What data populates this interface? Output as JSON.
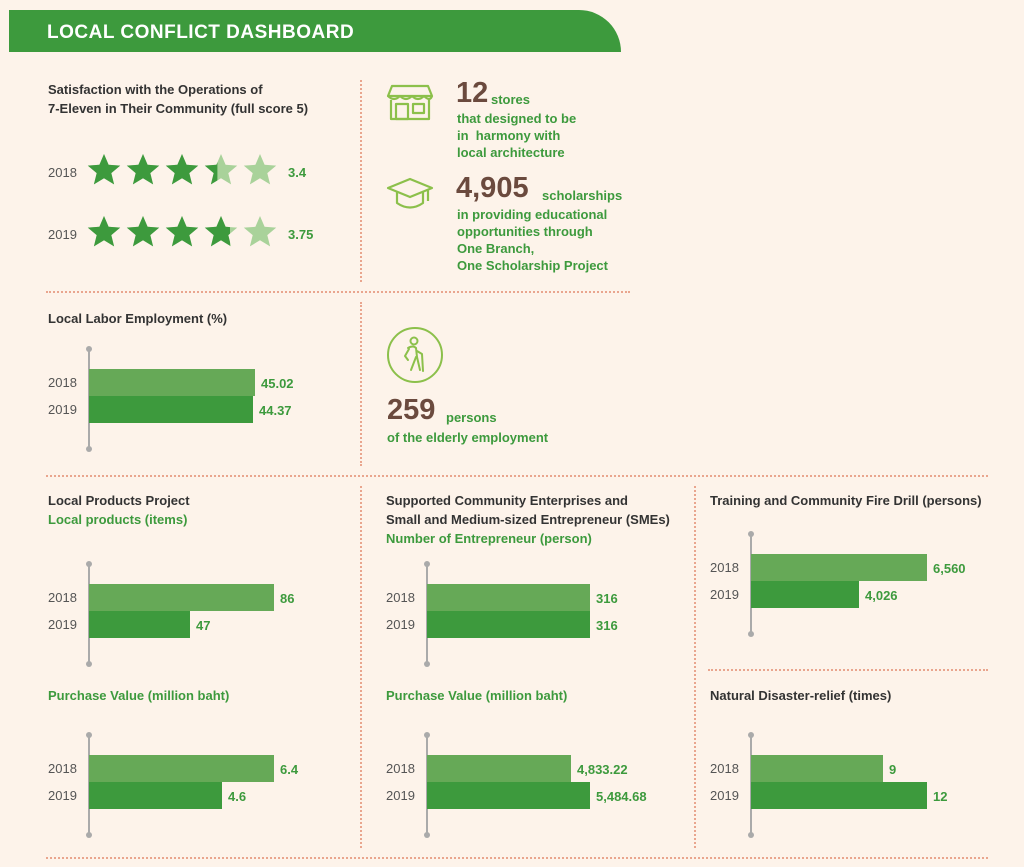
{
  "header": {
    "title": "LOCAL CONFLICT DASHBOARD"
  },
  "colors": {
    "accent": "#3d9a3d",
    "bar_2018": "#66a957",
    "bar_2019": "#3d9a3d",
    "number": "#6b4a3e",
    "divider": "#e9a58e"
  },
  "satisfaction": {
    "title_line1": "Satisfaction with the Operations of",
    "title_line2": "7-Eleven in Their Community (full score 5)",
    "rows": [
      {
        "year": "2018",
        "score": 3.4,
        "label": "3.4"
      },
      {
        "year": "2019",
        "score": 3.75,
        "label": "3.75"
      }
    ]
  },
  "stores": {
    "number": "12",
    "unit": "stores",
    "line1": "that designed to be",
    "line2": "in  harmony with",
    "line3": "local architecture",
    "icon": "store-icon"
  },
  "scholarships": {
    "number": "4,905",
    "unit": "scholarships",
    "line1": "in providing educational",
    "line2": "opportunities through",
    "line3": "One Branch,",
    "line4": "One Scholarship Project",
    "icon": "graduation-cap-icon"
  },
  "elderly": {
    "number": "259",
    "unit": "persons",
    "line1": "of the elderly employment",
    "icon": "elderly-person-icon"
  },
  "years": {
    "y2018": "2018",
    "y2019": "2019"
  },
  "chart_data": [
    {
      "id": "labor",
      "type": "bar",
      "title": "Local Labor Employment (%)",
      "categories": [
        "2018",
        "2019"
      ],
      "values": [
        45.02,
        44.37
      ],
      "labels": [
        "45.02",
        "44.37"
      ]
    },
    {
      "id": "local_products",
      "type": "bar",
      "title": "Local Products Project",
      "subtitle": "Local products (items)",
      "categories": [
        "2018",
        "2019"
      ],
      "values": [
        86,
        47
      ],
      "labels": [
        "86",
        "47"
      ]
    },
    {
      "id": "local_purchase",
      "type": "bar",
      "subtitle": "Purchase Value (million baht)",
      "categories": [
        "2018",
        "2019"
      ],
      "values": [
        6.4,
        4.6
      ],
      "labels": [
        "6.4",
        "4.6"
      ]
    },
    {
      "id": "sme_count",
      "type": "bar",
      "title": "Supported Community Enterprises and Small and Medium-sized Entrepreneur (SMEs)",
      "title_line1": "Supported Community Enterprises and",
      "title_line2": "Small and Medium-sized Entrepreneur (SMEs)",
      "subtitle": "Number of Entrepreneur (person)",
      "categories": [
        "2018",
        "2019"
      ],
      "values": [
        316,
        316
      ],
      "labels": [
        "316",
        "316"
      ]
    },
    {
      "id": "sme_purchase",
      "type": "bar",
      "subtitle": "Purchase Value (million baht)",
      "categories": [
        "2018",
        "2019"
      ],
      "values": [
        4833.22,
        5484.68
      ],
      "labels": [
        "4,833.22",
        "5,484.68"
      ]
    },
    {
      "id": "fire_drill",
      "type": "bar",
      "title": "Training and Community Fire Drill (persons)",
      "categories": [
        "2018",
        "2019"
      ],
      "values": [
        6560,
        4026
      ],
      "labels": [
        "6,560",
        "4,026"
      ]
    },
    {
      "id": "disaster",
      "type": "bar",
      "title": "Natural Disaster-relief (times)",
      "categories": [
        "2018",
        "2019"
      ],
      "values": [
        9,
        12
      ],
      "labels": [
        "9",
        "12"
      ]
    }
  ]
}
